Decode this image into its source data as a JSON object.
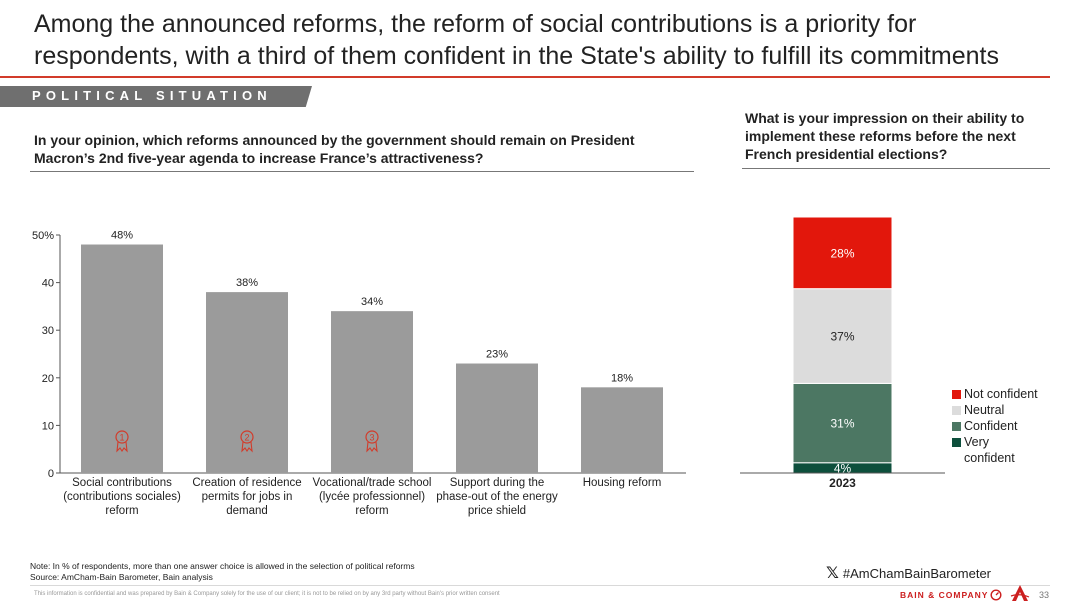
{
  "header": {
    "title": "Among the announced reforms, the reform of social contributions is a priority for respondents, with a third of them confident in the State's ability to fulfill its commitments",
    "section_tag": "POLITICAL SITUATION"
  },
  "questions": {
    "left": "In your opinion, which reforms announced by the government should remain on President Macron’s 2nd five-year agenda to increase France’s attractiveness?",
    "right": "What is your impression on their ability to implement these reforms before the next French presidential elections?"
  },
  "colors": {
    "bar": "#9b9b9b",
    "accent": "#d23b2a",
    "not_confident": "#e2170c",
    "neutral": "#dcdcdc",
    "confident": "#4c7763",
    "very_confident": "#0d4f3c"
  },
  "chart_data": [
    {
      "type": "bar",
      "categories": [
        "Social contributions (contributions sociales) reform",
        "Creation of residence permits for jobs in demand",
        "Vocational/trade school (lycée professionnel) reform",
        "Support during the phase-out of the energy price shield",
        "Housing reform"
      ],
      "values": [
        48,
        38,
        34,
        23,
        18
      ],
      "data_labels": [
        "48%",
        "38%",
        "34%",
        "23%",
        "18%"
      ],
      "rank_badges": [
        "1",
        "2",
        "3"
      ],
      "yticks": [
        "0",
        "10",
        "20",
        "30",
        "40",
        "50%"
      ],
      "ylim": [
        0,
        50
      ],
      "grid": false
    },
    {
      "type": "bar",
      "stacked": true,
      "categories": [
        "2023"
      ],
      "series": [
        {
          "name": "Very confident",
          "values": [
            4
          ],
          "label": "4%"
        },
        {
          "name": "Confident",
          "values": [
            31
          ],
          "label": "31%"
        },
        {
          "name": "Neutral",
          "values": [
            37
          ],
          "label": "37%"
        },
        {
          "name": "Not confident",
          "values": [
            28
          ],
          "label": "28%"
        }
      ],
      "legend_position": "right"
    }
  ],
  "legend": {
    "not_confident": "Not confident",
    "neutral": "Neutral",
    "confident": "Confident",
    "very_confident": "Very confident"
  },
  "footer": {
    "note": "Note: In % of respondents, more than one answer choice is allowed in the selection of political reforms",
    "source": "Source: AmCham-Bain Barometer, Bain analysis",
    "hashtag": "#AmChamBainBarometer",
    "disclaimer": "This information is confidential and was prepared by Bain & Company solely for the use of our client; it is not to be relied on by any 3rd party without Bain's prior written consent",
    "brand": "BAIN & COMPANY",
    "page_number": "33"
  }
}
